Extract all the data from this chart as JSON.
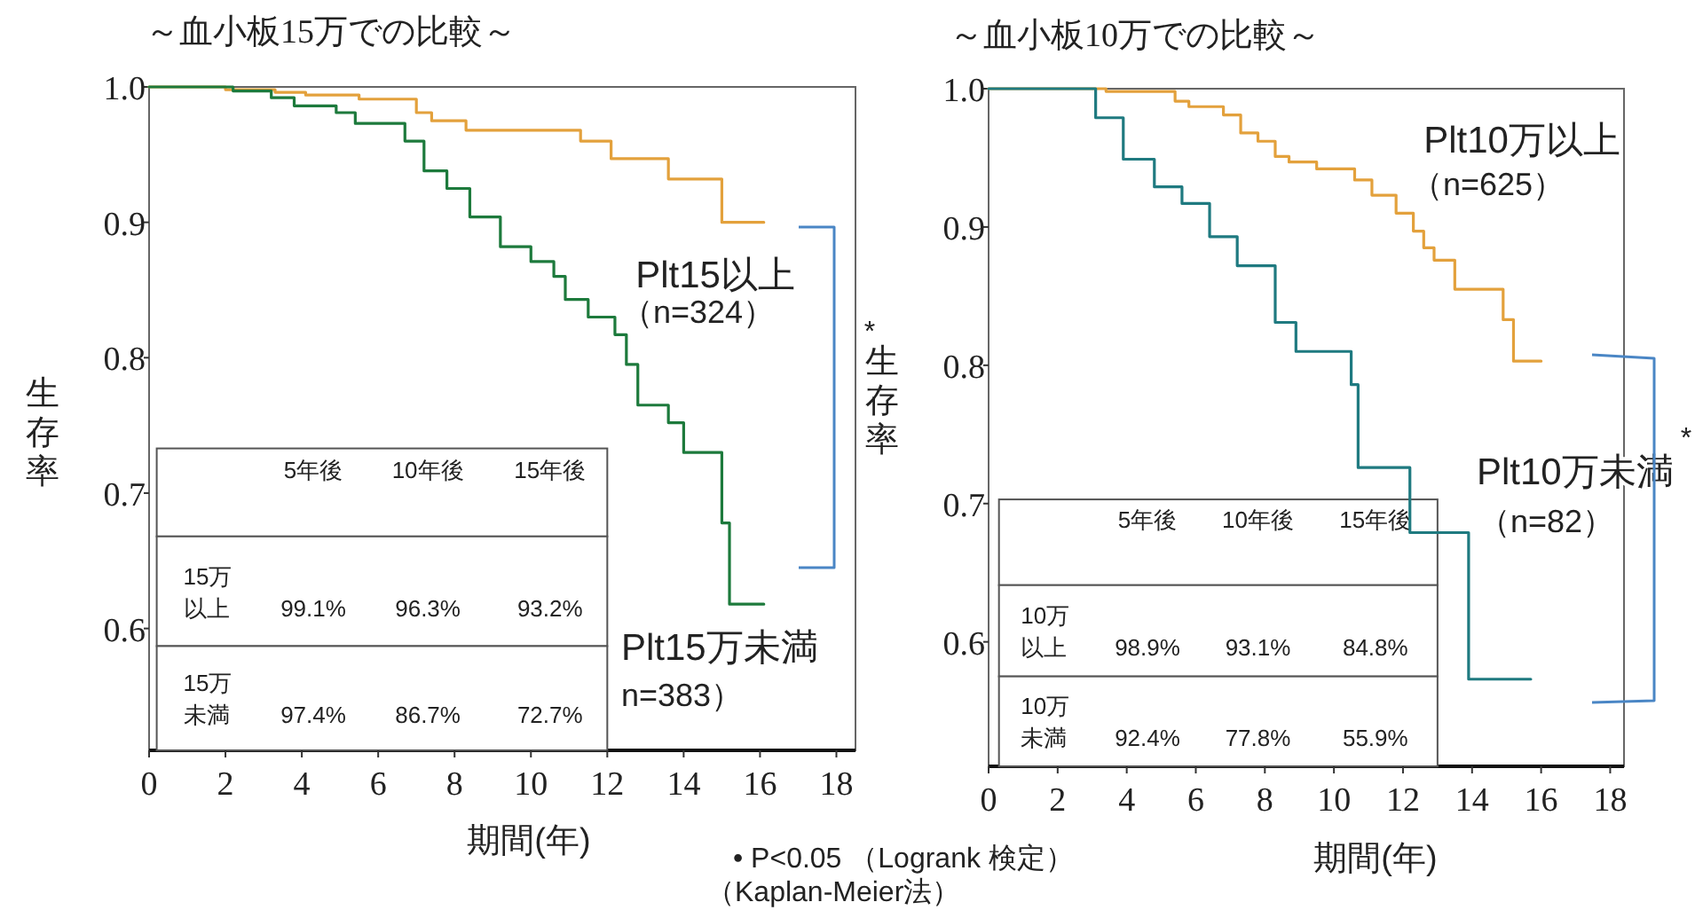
{
  "chart_data": [
    {
      "type": "step",
      "title": "～血小板15万での比較～",
      "xlabel": "期間(年)",
      "ylabel": "生存率",
      "xlim": [
        0,
        18.5
      ],
      "ylim": [
        0.51,
        1.0
      ],
      "xticks": [
        0,
        2,
        4,
        6,
        8,
        10,
        12,
        14,
        16,
        18
      ],
      "yticks": [
        0.6,
        0.7,
        0.8,
        0.9,
        {
          "value": 1.0,
          "label": "1.0"
        }
      ],
      "series": [
        {
          "name": "Plt15以上",
          "color": "#e3a13c",
          "x": [
            0,
            2,
            3.3,
            4.1,
            5.5,
            7.0,
            7.4,
            8.3,
            11.3,
            12.1,
            13.6,
            15.0,
            16.1
          ],
          "values": [
            1.0,
            0.998,
            0.996,
            0.994,
            0.991,
            0.981,
            0.975,
            0.968,
            0.96,
            0.947,
            0.932,
            0.9,
            0.9
          ]
        },
        {
          "name": "Plt15万未満",
          "color": "#1d7a3c",
          "x": [
            0,
            2.2,
            3.2,
            3.8,
            4.9,
            5.4,
            6.7,
            7.2,
            7.8,
            8.4,
            9.2,
            10.0,
            10.6,
            10.9,
            11.5,
            12.2,
            12.5,
            12.8,
            13.6,
            14.0,
            15.0,
            15.2,
            16.1
          ],
          "values": [
            1.0,
            0.997,
            0.992,
            0.986,
            0.981,
            0.973,
            0.96,
            0.938,
            0.925,
            0.904,
            0.882,
            0.871,
            0.86,
            0.843,
            0.83,
            0.817,
            0.795,
            0.765,
            0.752,
            0.73,
            0.678,
            0.618,
            0.618
          ]
        }
      ],
      "annotations": [
        "5年後",
        "10年後",
        "15年後",
        "15万以上",
        "15万未満",
        "99.1%",
        "96.3%",
        "93.2%",
        "97.4%",
        "86.7%",
        "72.7%",
        "（n=324）",
        "n=383）",
        "*",
        "• P<0.05 （Logrank 検定）",
        "（Kaplan-Meier法）"
      ]
    },
    {
      "type": "step",
      "title": "～血小板10万での比較～",
      "xlabel": "期間(年)",
      "ylabel": "生存率",
      "xlim": [
        0,
        18.4
      ],
      "ylim": [
        0.51,
        1.0
      ],
      "xticks": [
        0,
        2,
        4,
        6,
        8,
        10,
        12,
        14,
        16,
        18
      ],
      "yticks": [
        0.6,
        0.7,
        0.8,
        0.9,
        {
          "value": 1.0,
          "label": "1.0"
        }
      ],
      "series": [
        {
          "name": "Plt10万以上",
          "color": "#e3a13c",
          "x": [
            0,
            3.4,
            5.4,
            5.8,
            6.8,
            7.3,
            7.8,
            8.3,
            8.7,
            9.5,
            10.6,
            11.1,
            11.8,
            12.3,
            12.6,
            12.9,
            13.5,
            14.9,
            15.2,
            16.0
          ],
          "values": [
            1.0,
            0.998,
            0.991,
            0.987,
            0.981,
            0.968,
            0.962,
            0.951,
            0.947,
            0.942,
            0.934,
            0.923,
            0.91,
            0.897,
            0.885,
            0.876,
            0.855,
            0.833,
            0.803,
            0.803
          ]
        },
        {
          "name": "Plt10万未満",
          "color": "#1f7a80",
          "x": [
            0,
            3.1,
            3.9,
            4.8,
            5.6,
            6.4,
            7.2,
            8.3,
            8.9,
            10.5,
            10.7,
            12.2,
            13.9,
            15.7
          ],
          "values": [
            1.0,
            0.979,
            0.949,
            0.929,
            0.917,
            0.893,
            0.872,
            0.831,
            0.81,
            0.786,
            0.726,
            0.679,
            0.573,
            0.573
          ]
        }
      ],
      "annotations": [
        "5年後",
        "10年後",
        "15年後",
        "10万以上",
        "10万未満",
        "98.9%",
        "93.1%",
        "84.8%",
        "92.4%",
        "77.8%",
        "55.9%",
        "（n=625）",
        "（n=82）",
        "*"
      ]
    }
  ]
}
